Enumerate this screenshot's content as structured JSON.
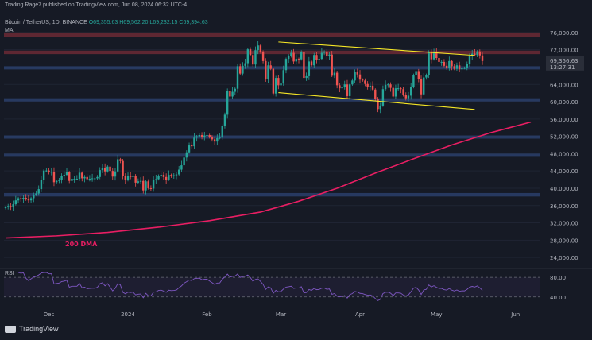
{
  "header": {
    "publisher": "Trading  Rage7 published on TradingView.com, Jun 08, 2024 06:32 UTC-4"
  },
  "symbol": {
    "name": "Bitcoin / TetherUS, 1D, BINANCE",
    "open": "O69,355.63",
    "high": "H69,562.20",
    "low": "L69,232.15",
    "close": "C69,394.63"
  },
  "indicator": "MA",
  "rsi_label": "RSI",
  "price_tag": {
    "price": "69,356.63",
    "countdown": "13:27:31"
  },
  "logo_text": "TradingView",
  "dma_label": "200 DMA",
  "colors": {
    "background": "#161a25",
    "up": "#26a69a",
    "down": "#ef5350",
    "zone": "#2a3f6b",
    "resistance": "#6b2a35",
    "channel": "#f5e626",
    "dma": "#e91e63",
    "rsi": "#7e57c2"
  },
  "chart_data": {
    "type": "candlestick",
    "title": "Bitcoin / TetherUS, 1D, BINANCE",
    "y_ticks": [
      "76,000.00",
      "72,000.00",
      "68,000.00",
      "64,000.00",
      "60,000.00",
      "56,000.00",
      "52,000.00",
      "48,000.00",
      "44,000.00",
      "40,000.00",
      "36,000.00",
      "32,000.00",
      "28,000.00",
      "24,000.00"
    ],
    "y_values": [
      76000,
      72000,
      68000,
      64000,
      60000,
      56000,
      52000,
      48000,
      44000,
      40000,
      36000,
      32000,
      28000,
      24000
    ],
    "ylim": [
      22000,
      78000
    ],
    "x_ticks": [
      "Dec",
      "2024",
      "Feb",
      "Mar",
      "Apr",
      "May",
      "Jun"
    ],
    "x_start": "2023-11-14",
    "x_end": "2024-06-07",
    "x_tick_dates": [
      "2023-12-01",
      "2024-01-01",
      "2024-02-01",
      "2024-03-01",
      "2024-04-01",
      "2024-05-01",
      "2024-06-01"
    ],
    "series": [
      {
        "name": "BTCUSDT",
        "close": [
          35600,
          35900,
          35700,
          36300,
          37200,
          37700,
          37600,
          37800,
          37400,
          37200,
          37700,
          38500,
          38800,
          39800,
          41900,
          44100,
          44100,
          43700,
          43800,
          41400,
          41700,
          41900,
          42800,
          43100,
          43700,
          41700,
          42200,
          42200,
          42200,
          43600,
          42300,
          42600,
          42100,
          42200,
          42300,
          42300,
          42600,
          44200,
          44700,
          43900,
          45000,
          44000,
          42700,
          43900,
          46700,
          46300,
          42800,
          41900,
          42800,
          42600,
          42800,
          41300,
          41600,
          41700,
          39500,
          41600,
          40000,
          39900,
          41900,
          42100,
          42900,
          43100,
          42600,
          42000,
          43100,
          42900,
          43000,
          43200,
          44300,
          45300,
          47100,
          48300,
          49900,
          49700,
          51700,
          52000,
          52300,
          51800,
          52200,
          52300,
          51800,
          51300,
          50800,
          51600,
          51700,
          54500,
          57000,
          62400,
          61200,
          62300,
          63000,
          68200,
          66500,
          68300,
          68900,
          72100,
          70800,
          68600,
          71900,
          73000,
          71400,
          69400,
          65300,
          68400,
          67600,
          61900,
          65500,
          63800,
          64200,
          67300,
          69900,
          70500,
          71300,
          69300,
          69900,
          69800,
          71400,
          65500,
          65900,
          69300,
          68400,
          70800,
          69600,
          69900,
          71300,
          71600,
          70500,
          70900,
          66000,
          66700,
          63800,
          63100,
          63300,
          64000,
          61300,
          64000,
          64900,
          66800,
          66300,
          65100,
          64900,
          64100,
          63500,
          63700,
          62800,
          60600,
          58300,
          59100,
          62900,
          63900,
          64000,
          63200,
          61200,
          63100,
          63100,
          62900,
          61500,
          60800,
          61400,
          63400,
          66200,
          66900,
          65200,
          61700,
          65600,
          66200,
          71400,
          69800,
          71400,
          70100,
          69200,
          69200,
          68300,
          67900,
          69400,
          68200,
          67600,
          68400,
          67500,
          67800,
          67800,
          68800,
          70500,
          71100,
          70800,
          71600,
          70700,
          69400
        ]
      },
      {
        "name": "200 DMA",
        "points": [
          [
            0,
            28500
          ],
          [
            20,
            29000
          ],
          [
            40,
            29800
          ],
          [
            60,
            31000
          ],
          [
            80,
            32500
          ],
          [
            100,
            34500
          ],
          [
            115,
            37000
          ],
          [
            130,
            40000
          ],
          [
            145,
            43500
          ],
          [
            160,
            46800
          ],
          [
            175,
            50000
          ],
          [
            190,
            52800
          ],
          [
            206,
            55300
          ]
        ]
      }
    ],
    "channel_upper": [
      [
        107,
        73800
      ],
      [
        184,
        70700
      ]
    ],
    "channel_lower": [
      [
        107,
        62100
      ],
      [
        184,
        58200
      ]
    ],
    "resistance_zone": [
      [
        76000,
        75000
      ],
      [
        71800,
        71000
      ]
    ],
    "support_zones": [
      [
        68200,
        67600
      ],
      [
        60800,
        60100
      ],
      [
        52200,
        51600
      ],
      [
        48000,
        47400
      ],
      [
        38900,
        38100
      ]
    ],
    "rsi": {
      "levels": [
        80,
        40
      ],
      "ylim": [
        25,
        90
      ]
    }
  }
}
